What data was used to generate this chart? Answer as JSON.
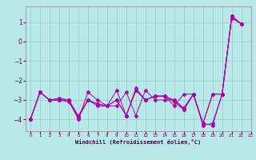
{
  "xlabel": "Windchill (Refroidissement éolien,°C)",
  "background_color": "#b8e8e8",
  "line_color": "#aa00aa",
  "grid_color": "#99cccc",
  "xlim": [
    -0.5,
    23
  ],
  "ylim": [
    -4.6,
    1.8
  ],
  "yticks": [
    -4,
    -3,
    -2,
    -1,
    0,
    1
  ],
  "xticks": [
    0,
    1,
    2,
    3,
    4,
    5,
    6,
    7,
    8,
    9,
    10,
    11,
    12,
    13,
    14,
    15,
    16,
    17,
    18,
    19,
    20,
    21,
    22,
    23
  ],
  "series1": [
    -4.0,
    -2.6,
    -3.0,
    -3.0,
    -3.0,
    -4.0,
    -2.6,
    -3.0,
    -3.3,
    -3.3,
    -2.6,
    -3.8,
    -2.5,
    -3.0,
    -3.0,
    -3.0,
    -3.5,
    -2.7,
    -4.3,
    -4.2,
    -2.7,
    1.3,
    0.9
  ],
  "series2": [
    -4.0,
    -2.6,
    -3.0,
    -2.9,
    -3.0,
    -3.8,
    -3.0,
    -3.3,
    -3.3,
    -2.5,
    -3.8,
    -2.4,
    -3.0,
    -2.8,
    -2.8,
    -3.3,
    -2.7,
    -2.7,
    -4.2,
    -2.7,
    -2.7,
    1.3,
    0.9
  ],
  "series3": [
    -4.0,
    -2.6,
    -3.0,
    -3.0,
    -3.1,
    -3.9,
    -3.0,
    -3.2,
    -3.3,
    -3.0,
    -3.8,
    -2.5,
    -3.0,
    -2.8,
    -2.8,
    -3.0,
    -3.4,
    -2.7,
    -4.2,
    -2.7,
    -2.7,
    1.2,
    0.9
  ],
  "series4": [
    -4.0,
    -2.6,
    -3.0,
    -3.0,
    -3.0,
    -3.9,
    -3.0,
    -3.2,
    -3.3,
    -3.0,
    -3.8,
    -2.5,
    -3.0,
    -2.8,
    -2.8,
    -3.1,
    -3.5,
    -2.7,
    -4.2,
    -4.3,
    -2.7,
    1.3,
    0.9
  ]
}
